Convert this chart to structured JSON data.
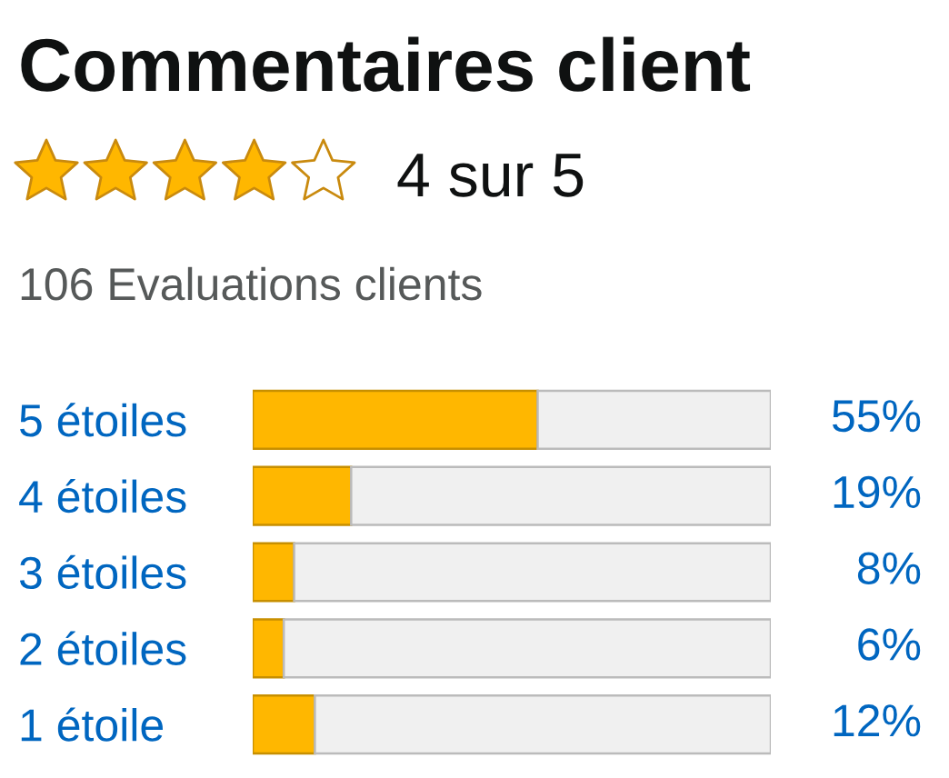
{
  "chart_data": {
    "type": "bar",
    "orientation": "horizontal",
    "stacked": true,
    "title": "Commentaires client",
    "annotations": [
      "4 sur 5",
      "106 Evaluations clients"
    ],
    "categories": [
      "5 étoiles",
      "4 étoiles",
      "3 étoiles",
      "2 étoiles",
      "1 étoile"
    ],
    "series": [
      {
        "color": "#ffb700",
        "values": [
          55,
          19,
          8,
          6,
          12
        ],
        "value_labels": [
          "55%",
          "19%",
          "8%",
          "6%",
          "12%"
        ]
      },
      {
        "color": "#f0f0f0",
        "values": [
          45,
          81,
          92,
          94,
          88
        ]
      }
    ],
    "xlim": [
      0,
      100
    ],
    "tick_labels": "y"
  }
}
